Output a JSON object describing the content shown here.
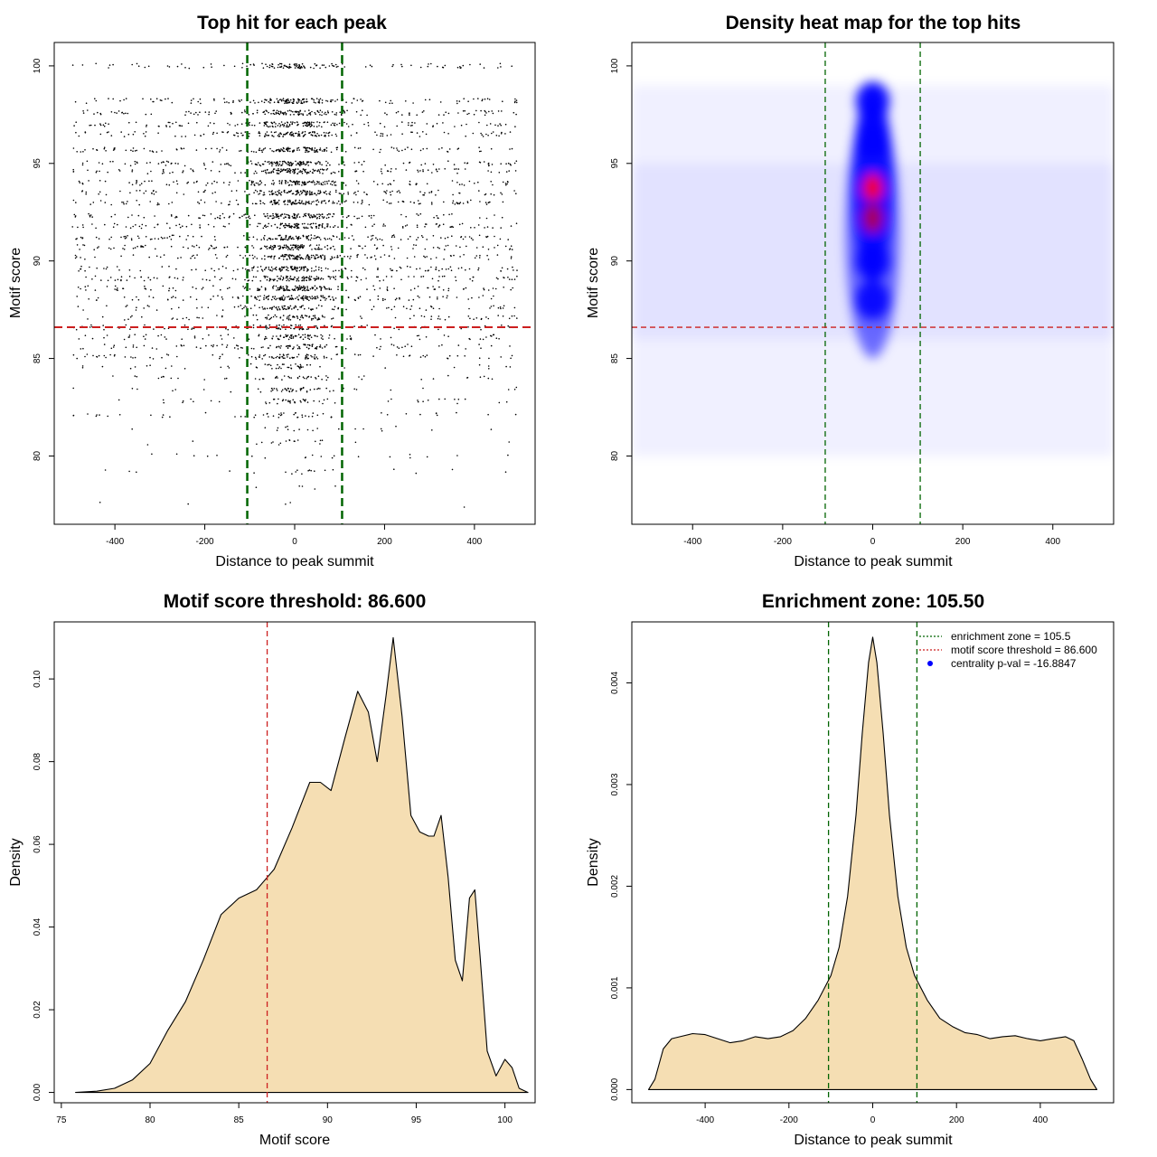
{
  "colors": {
    "threshold": "#cc1f1f",
    "zone": "#006400",
    "fill": "#f5deb3",
    "heat_low": "#ffffff",
    "heat_mid": "#0000ff",
    "heat_high": "#ff0000",
    "centrality": "#0000ff"
  },
  "chart_data": [
    {
      "id": "scatter",
      "type": "scatter",
      "title": "Top hit for each peak",
      "xlabel": "Distance to peak summit",
      "ylabel": "Motif score",
      "xlim": [
        -535,
        535
      ],
      "ylim": [
        76.5,
        101.2
      ],
      "xticks": [
        -400,
        -200,
        0,
        200,
        400
      ],
      "xtick_labels": [
        "-400",
        "-200",
        "0",
        "200",
        "400"
      ],
      "yticks": [
        80,
        85,
        90,
        95,
        100
      ],
      "ytick_labels": [
        "80",
        "85",
        "90",
        "95",
        "100"
      ],
      "zone": [
        -105.5,
        105.5
      ],
      "threshold": 86.6,
      "score_levels": [
        100,
        98.2,
        97.6,
        97.0,
        96.5,
        95.7,
        95.0,
        94.6,
        94.0,
        93.5,
        93.0,
        92.3,
        91.8,
        91.2,
        90.7,
        90.2,
        89.6,
        89.1,
        88.6,
        88.1,
        87.6,
        87.1,
        86.6,
        86.1,
        85.6,
        85.1,
        84.6,
        84.0,
        83.4,
        82.8,
        82.1,
        81.4,
        80.7,
        80.0,
        79.2,
        78.4,
        77.5
      ],
      "point_density": "centered on 0, dense between 86 and 98"
    },
    {
      "id": "heatmap",
      "type": "heatmap",
      "title": "Density heat map for the top hits",
      "xlabel": "Distance to peak summit",
      "ylabel": "Motif score",
      "xlim": [
        -535,
        535
      ],
      "ylim": [
        76.5,
        101.2
      ],
      "xticks": [
        -400,
        -200,
        0,
        200,
        400
      ],
      "xtick_labels": [
        "-400",
        "-200",
        "0",
        "200",
        "400"
      ],
      "yticks": [
        80,
        85,
        90,
        95,
        100
      ],
      "ytick_labels": [
        "80",
        "85",
        "90",
        "95",
        "100"
      ],
      "zone": [
        -105.5,
        105.5
      ],
      "threshold": 86.6,
      "hotspots": [
        {
          "x": 0,
          "y": 93.7,
          "level": 1.0
        },
        {
          "x": 0,
          "y": 92.2,
          "level": 0.78
        },
        {
          "x": 0,
          "y": 96.2,
          "level": 0.62
        },
        {
          "x": 0,
          "y": 98.2,
          "level": 0.55
        },
        {
          "x": 0,
          "y": 90.0,
          "level": 0.45
        },
        {
          "x": 0,
          "y": 88.0,
          "level": 0.3
        }
      ]
    },
    {
      "id": "score_density",
      "type": "area",
      "title": "Motif score threshold: 86.600",
      "xlabel": "Motif score",
      "ylabel": "Density",
      "xlim": [
        74.6,
        101.7
      ],
      "ylim": [
        -0.0025,
        0.1138
      ],
      "xticks": [
        75,
        80,
        85,
        90,
        95,
        100
      ],
      "xtick_labels": [
        "75",
        "80",
        "85",
        "90",
        "95",
        "100"
      ],
      "yticks": [
        0.0,
        0.02,
        0.04,
        0.06,
        0.08,
        0.1
      ],
      "ytick_labels": [
        "0.00",
        "0.02",
        "0.04",
        "0.06",
        "0.08",
        "0.10"
      ],
      "threshold": 86.6,
      "x": [
        75.8,
        77.0,
        78.0,
        79.0,
        80.0,
        81.0,
        82.0,
        83.0,
        84.0,
        85.0,
        86.0,
        86.6,
        87.0,
        88.0,
        89.0,
        89.6,
        90.2,
        91.0,
        91.7,
        92.3,
        92.8,
        93.3,
        93.7,
        94.2,
        94.7,
        95.2,
        95.7,
        96.0,
        96.4,
        96.8,
        97.2,
        97.6,
        98.0,
        98.3,
        98.6,
        99.0,
        99.5,
        100.0,
        100.4,
        100.8,
        101.3
      ],
      "y": [
        0.0,
        0.0003,
        0.001,
        0.003,
        0.007,
        0.015,
        0.022,
        0.032,
        0.043,
        0.047,
        0.049,
        0.052,
        0.054,
        0.064,
        0.075,
        0.075,
        0.073,
        0.086,
        0.097,
        0.092,
        0.08,
        0.096,
        0.11,
        0.091,
        0.067,
        0.063,
        0.062,
        0.062,
        0.067,
        0.052,
        0.032,
        0.027,
        0.047,
        0.049,
        0.033,
        0.01,
        0.004,
        0.008,
        0.006,
        0.001,
        0.0
      ]
    },
    {
      "id": "distance_density",
      "type": "area",
      "title": "Enrichment zone: 105.50",
      "xlabel": "Distance to peak summit",
      "ylabel": "Density",
      "xlim": [
        -575,
        575
      ],
      "ylim": [
        -0.00013,
        0.0046
      ],
      "xticks": [
        -400,
        -200,
        0,
        200,
        400
      ],
      "xtick_labels": [
        "-400",
        "-200",
        "0",
        "200",
        "400"
      ],
      "yticks": [
        0.0,
        0.001,
        0.002,
        0.003,
        0.004
      ],
      "ytick_labels": [
        "0.000",
        "0.001",
        "0.002",
        "0.003",
        "0.004"
      ],
      "zone": [
        -105.5,
        105.5
      ],
      "x": [
        -535,
        -520,
        -500,
        -480,
        -460,
        -430,
        -400,
        -370,
        -340,
        -310,
        -280,
        -250,
        -220,
        -190,
        -160,
        -130,
        -100,
        -80,
        -60,
        -40,
        -25,
        -10,
        0,
        10,
        25,
        40,
        60,
        80,
        100,
        130,
        160,
        190,
        220,
        250,
        280,
        310,
        340,
        370,
        400,
        430,
        460,
        480,
        500,
        520,
        535
      ],
      "y": [
        0.0,
        0.0001,
        0.0004,
        0.0005,
        0.00052,
        0.00055,
        0.00054,
        0.0005,
        0.00046,
        0.00048,
        0.00052,
        0.0005,
        0.00052,
        0.00058,
        0.0007,
        0.00088,
        0.00112,
        0.0014,
        0.0019,
        0.0027,
        0.0035,
        0.0042,
        0.00445,
        0.0042,
        0.0035,
        0.0027,
        0.0019,
        0.0014,
        0.00112,
        0.00088,
        0.0007,
        0.00062,
        0.00056,
        0.00054,
        0.0005,
        0.00052,
        0.00053,
        0.0005,
        0.00048,
        0.0005,
        0.00052,
        0.00048,
        0.0003,
        0.0001,
        0.0
      ]
    }
  ],
  "legend": {
    "zone_label": "enrichment zone = 105.5",
    "threshold_label": "motif score threshold = 86.600",
    "centrality_label": "centrality p-val = -16.8847"
  }
}
